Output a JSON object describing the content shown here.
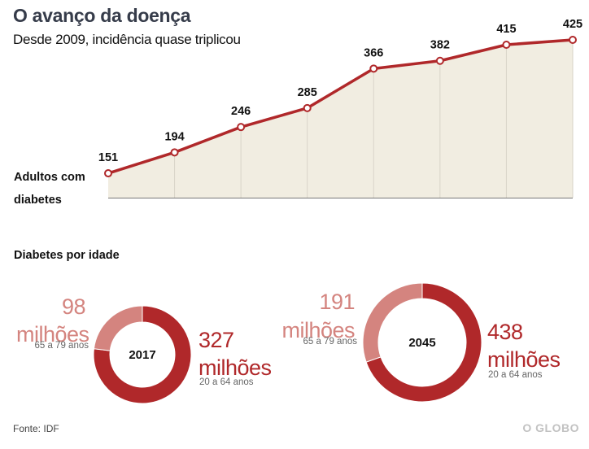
{
  "header": {
    "title": "O avanço da doença",
    "subtitle": "Desde 2009, incidência quase triplicou"
  },
  "chart_data": [
    {
      "type": "area",
      "title": "O avanço da doença",
      "subtitle": "Desde 2009, incidência quase triplicou",
      "ylabel": "Adultos com diabetes",
      "x": [
        1,
        2,
        3,
        4,
        5,
        6,
        7,
        8
      ],
      "values": [
        151,
        194,
        246,
        285,
        366,
        382,
        415,
        425
      ],
      "data_labels": [
        "151",
        "194",
        "246",
        "285",
        "366",
        "382",
        "415",
        "425"
      ],
      "ylim": [
        101,
        425
      ],
      "grid": "vertical",
      "colors": {
        "line": "#b0282a",
        "fill": "#f1ede1",
        "grid": "#d8d4c8",
        "baseline": "#777777"
      }
    },
    {
      "type": "pie",
      "variant": "donut",
      "section_title": "Diabetes por idade",
      "center_label": "2017",
      "slices": [
        {
          "label": "20 a 64 anos",
          "value": 327,
          "value_label": "327",
          "unit": "milhões",
          "color": "#b0282a"
        },
        {
          "label": "65 a 79 anos",
          "value": 98,
          "value_label": "98",
          "unit": "milhões",
          "color": "#d4847f"
        }
      ]
    },
    {
      "type": "pie",
      "variant": "donut",
      "center_label": "2045",
      "slices": [
        {
          "label": "20 a 64 anos",
          "value": 438,
          "value_label": "438",
          "unit": "milhões",
          "color": "#b0282a"
        },
        {
          "label": "65 a 79 anos",
          "value": 191,
          "value_label": "191",
          "unit": "milhões",
          "color": "#d4847f"
        }
      ]
    }
  ],
  "footer": {
    "source": "Fonte: IDF",
    "logo": "O GLOBO"
  }
}
